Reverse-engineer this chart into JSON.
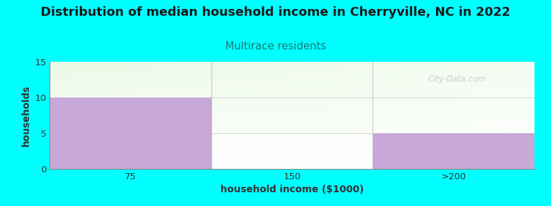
{
  "title": "Distribution of median household income in Cherryville, NC in 2022",
  "subtitle": "Multirace residents",
  "xlabel": "household income ($1000)",
  "ylabel": "households",
  "categories": [
    "75",
    "150",
    ">200"
  ],
  "values": [
    10,
    0,
    5
  ],
  "bar_color": "#c8a8d8",
  "ylim": [
    0,
    15
  ],
  "yticks": [
    0,
    5,
    10,
    15
  ],
  "background_color": "#00FFFF",
  "title_color": "#1a1a1a",
  "subtitle_color": "#1a7a7a",
  "axis_label_color": "#333333",
  "tick_color": "#333333",
  "watermark": "City-Data.com",
  "title_fontsize": 13,
  "subtitle_fontsize": 11,
  "label_fontsize": 9.5
}
